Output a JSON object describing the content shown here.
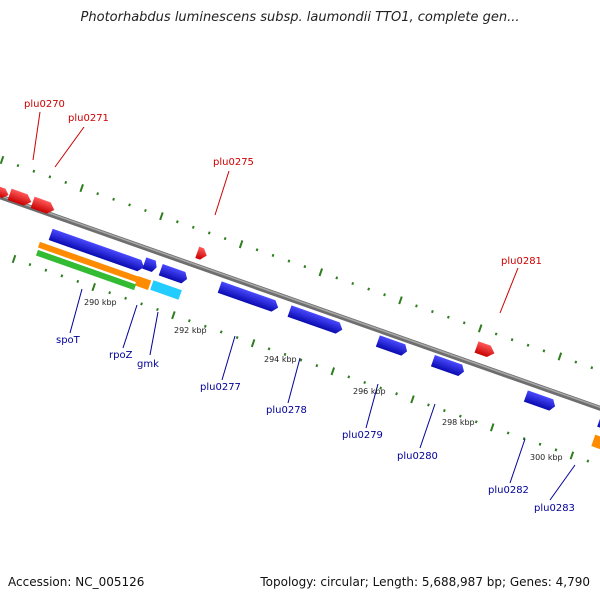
{
  "title": "Photorhabdus luminescens subsp. laumondii TTO1, complete gen...",
  "footer": {
    "accession": "Accession: NC_005126",
    "summary": "Topology: circular; Length: 5,688,987 bp; Genes: 4,790"
  },
  "colors": {
    "backbone": "#888888",
    "ticks": "#2e7d1f",
    "forward_gene": "#ee1111",
    "reverse_gene": "#1a1ae0",
    "forward_label": "#cc0000",
    "reverse_label": "#000099",
    "orange_feature": "#ff8c00",
    "cyan_feature": "#22ccff",
    "green_feature": "#33bb33"
  },
  "scale_labels": [
    "290 kbp",
    "292 kbp",
    "294 kbp",
    "296 kbp",
    "298 kbp",
    "300 kbp"
  ],
  "forward_genes": [
    "plu0270",
    "plu0271",
    "plu0275",
    "plu0281"
  ],
  "reverse_genes": [
    "spoT",
    "rpoZ",
    "gmk",
    "plu0277",
    "plu0278",
    "plu0279",
    "plu0280",
    "plu0282",
    "plu0283"
  ]
}
